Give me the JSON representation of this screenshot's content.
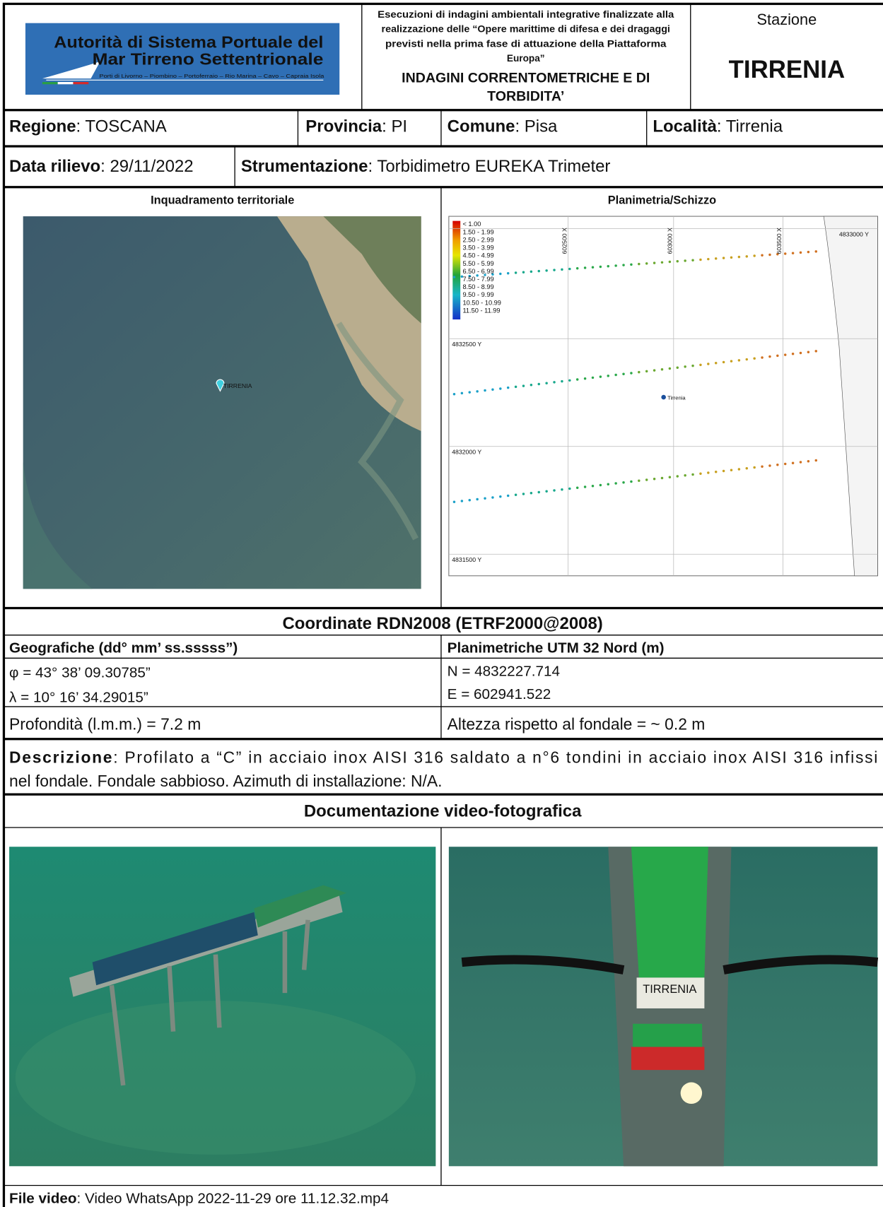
{
  "header": {
    "logo": {
      "line1": "Autorità di Sistema Portuale del",
      "line2": "Mar Tirreno Settentrionale",
      "tagline": "Porti di Livorno – Piombino – Portoferraio – Rio Marina – Cavo – Capraia Isola"
    },
    "project": {
      "lines": [
        "Esecuzioni di indagini ambientali integrative finalizzate alla",
        "realizzazione delle “Opere marittime di difesa e dei dragaggi",
        "previsti nella prima fase di attuazione della Piattaforma",
        "Europa”"
      ],
      "subtitle_lines": [
        "INDAGINI CORRENTOMETRICHE E DI",
        "TORBIDITA’"
      ]
    },
    "station": {
      "label": "Stazione",
      "name": "TIRRENIA"
    }
  },
  "info": {
    "regione": {
      "label": "Regione",
      "value": ": TOSCANA"
    },
    "provincia": {
      "label": "Provincia",
      "value": ": PI"
    },
    "comune": {
      "label": "Comune",
      "value": ": Pisa"
    },
    "localita": {
      "label": "Località",
      "value": ": Tirrenia"
    },
    "data_rilievo": {
      "label": "Data rilievo",
      "value": ": 29/11/2022"
    },
    "strumentazione": {
      "label": "Strumentazione",
      "value": ": Torbidimetro EUREKA Trimeter"
    }
  },
  "maps": {
    "left": {
      "title": "Inquadramento territoriale",
      "marker": "TIRRENIA"
    },
    "right": {
      "title": "Planimetria/Schizzo",
      "marker": "Tirrenia",
      "legend": [
        "< 1.00",
        "1.50 - 1.99",
        "2.50 - 2.99",
        "3.50 - 3.99",
        "4.50 - 4.99",
        "5.50 - 5.99",
        "6.50 - 6.99",
        "7.50 - 7.99",
        "8.50 - 8.99",
        "9.50 - 9.99",
        "10.50 - 10.99",
        "11.50 - 11.99"
      ],
      "x_grid_labels": [
        "602500 X",
        "603000 X",
        "603500 X"
      ],
      "y_grid_labels": [
        "4833000 Y",
        "4832500 Y",
        "4832000 Y",
        "4831500 Y"
      ]
    }
  },
  "coordinates": {
    "title": "Coordinate RDN2008 (ETRF2000@2008)",
    "geographic": {
      "header": "Geografiche (dd° mm’ ss.sssss”)",
      "rows": [
        "φ = 43° 38’ 09.30785”",
        "λ = 10° 16’ 34.29015”"
      ]
    },
    "planimetric": {
      "header": "Planimetriche UTM 32 Nord (m)",
      "rows": [
        "N = 4832227.714",
        "E = 602941.522"
      ]
    },
    "depth": "Profondità (l.m.m.) = 7.2 m",
    "height": "Altezza rispetto al fondale = ~ 0.2 m"
  },
  "description": {
    "label": "Descrizione",
    "lines": [
      ": Profilato a “C” in acciaio inox AISI 316 saldato a n°6 tondini in acciaio inox AISI 316 infissi",
      "nel fondale. Fondale sabbioso. Azimuth di installazione: N/A."
    ]
  },
  "documentation": {
    "title": "Documentazione video-fotografica",
    "photo_label": "TIRRENIA",
    "file_video": {
      "label": "File video",
      "value": ": Video WhatsApp 2022-11-29 ore 11.12.32.mp4"
    }
  }
}
